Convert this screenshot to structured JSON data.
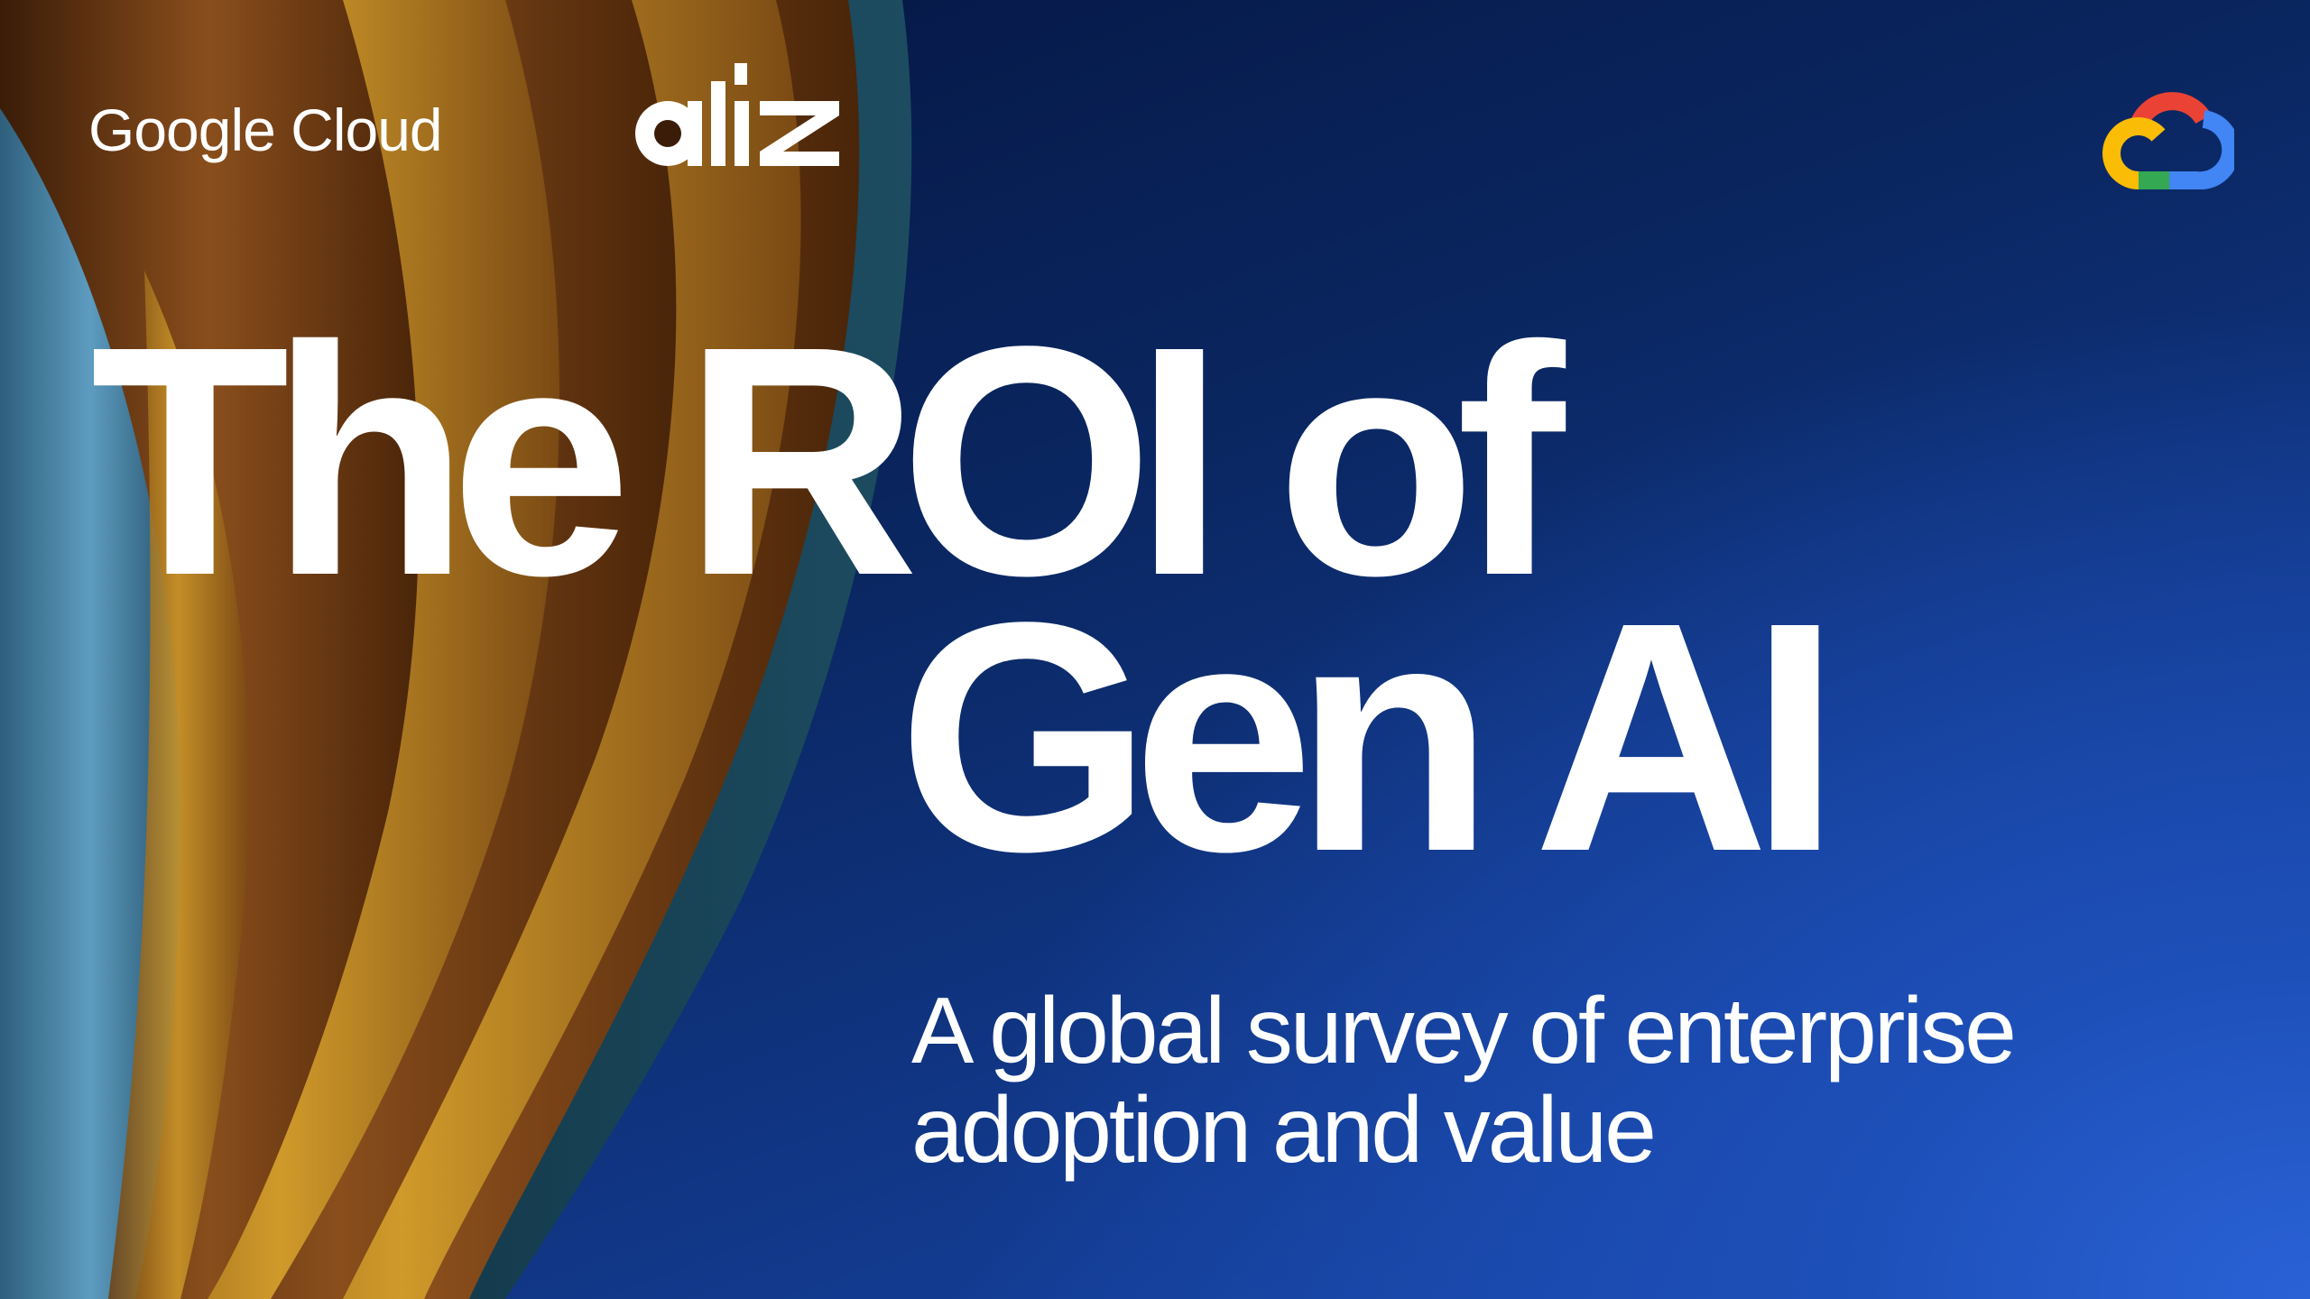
{
  "logos": {
    "google_cloud_text": "Google Cloud",
    "partner_logo": "aliz",
    "cloud_icon": "google-cloud-icon",
    "cloud_colors": [
      "#EA4335",
      "#FBBC05",
      "#34A853",
      "#4285F4"
    ]
  },
  "title": {
    "line1": "The ROI of",
    "line2": "Gen AI"
  },
  "subtitle": {
    "line1": "A global survey of enterprise",
    "line2": "adoption and value"
  },
  "colors": {
    "background_dark": "#04133c",
    "background_bright": "#2a62d6",
    "fabric_gold": "#c58a1f",
    "fabric_brown": "#7a4316",
    "fabric_blue": "#4f8fb0"
  }
}
